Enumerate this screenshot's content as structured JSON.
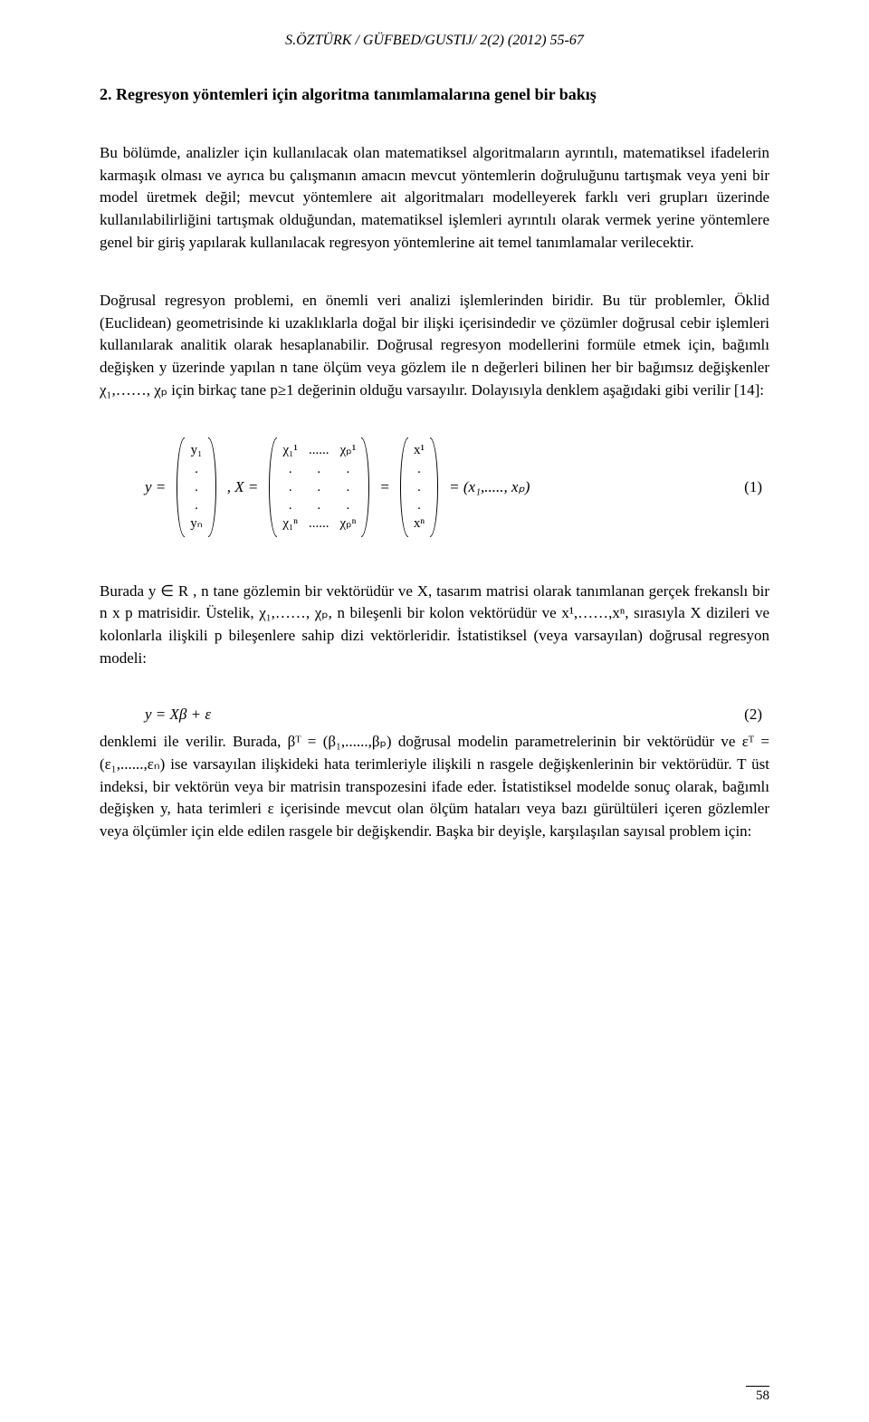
{
  "header": {
    "text": "S.ÖZTÜRK / GÜFBED/GUSTIJ/ 2(2) (2012) 55-67"
  },
  "section": {
    "title": "2. Regresyon yöntemleri için algoritma tanımlamalarına genel bir bakış"
  },
  "paras": {
    "p1": "Bu bölümde, analizler için kullanılacak olan matematiksel algoritmaların ayrıntılı, matematiksel ifadelerin karmaşık olması ve ayrıca bu çalışmanın amacın mevcut yöntemlerin doğruluğunu tartışmak veya yeni bir model üretmek değil; mevcut yöntemlere ait algoritmaları modelleyerek farklı veri grupları üzerinde kullanılabilirliğini tartışmak olduğundan, matematiksel işlemleri ayrıntılı olarak vermek yerine yöntemlere genel bir giriş yapılarak kullanılacak regresyon yöntemlerine ait temel tanımlamalar verilecektir.",
    "p2": "Doğrusal regresyon problemi, en önemli veri analizi işlemlerinden biridir. Bu tür problemler, Öklid (Euclidean) geometrisinde ki uzaklıklarla doğal bir ilişki içerisindedir ve çözümler doğrusal cebir işlemleri kullanılarak analitik olarak hesaplanabilir. Doğrusal regresyon modellerini formüle etmek için, bağımlı değişken y üzerinde yapılan n tane ölçüm veya gözlem ile n değerleri bilinen her bir bağımsız değişkenler χ₁,……, χₚ için birkaç tane p≥1 değerinin olduğu varsayılır. Dolayısıyla denklem aşağıdaki gibi verilir [14]:",
    "p3": "Burada y ∈ R , n tane gözlemin bir vektörüdür ve X, tasarım matrisi olarak tanımlanan gerçek frekanslı bir n x p matrisidir. Üstelik, χ₁,……, χₚ, n bileşenli bir kolon vektörüdür ve x¹,……,xⁿ, sırasıyla X dizileri ve kolonlarla ilişkili p bileşenlere sahip dizi vektörleridir. İstatistiksel (veya varsayılan) doğrusal regresyon modeli:",
    "p4": "denklemi ile verilir. Burada, βᵀ = (β₁,......,βₚ) doğrusal modelin parametrelerinin bir vektörüdür ve εᵀ = (ε₁,......,εₙ) ise varsayılan ilişkideki hata terimleriyle ilişkili n rasgele değişkenlerinin bir vektörüdür. T üst indeksi, bir vektörün veya bir matrisin transpozesini ifade eder. İstatistiksel modelde sonuç olarak, bağımlı değişken y, hata terimleri ε içerisinde mevcut olan ölçüm hataları veya bazı gürültüleri içeren gözlemler veya ölçümler için elde edilen rasgele bir değişkendir. Başka bir deyişle, karşılaşılan sayısal problem için:"
  },
  "eq1": {
    "yvec": [
      "y₁",
      ".",
      ".",
      ".",
      "yₙ"
    ],
    "Xleft": [
      "χ₁¹",
      ".",
      ".",
      ".",
      "χ₁ⁿ"
    ],
    "Xmid": [
      "......",
      ".",
      ".",
      ".",
      "......"
    ],
    "Xright": [
      "χₚ¹",
      ".",
      ".",
      ".",
      "χₚⁿ"
    ],
    "xvec": [
      "x¹",
      ".",
      ".",
      ".",
      "xⁿ"
    ],
    "lead_y": "y =",
    "lead_X": ",     X =",
    "eq_sep": "=",
    "tail": "= (x₁,....., xₚ)",
    "num": "(1)"
  },
  "eq2": {
    "expr": "y = Xβ + ε",
    "num": "(2)"
  },
  "page_number": "58"
}
